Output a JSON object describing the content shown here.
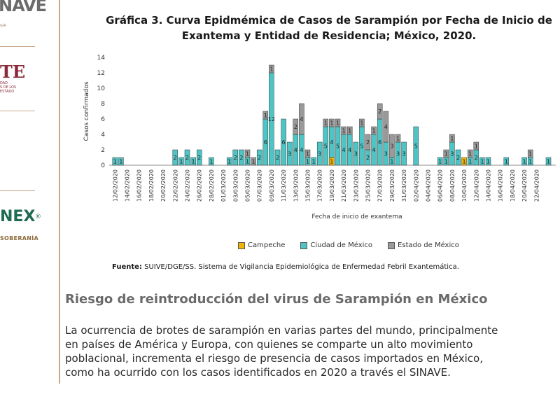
{
  "sidebar": {
    "logo1": "NAVE",
    "logo1_sub": "GÍA",
    "logo2": "TE",
    "logo2_sub": "DAD\nS DE LOS\nESTADO",
    "logo3": "NEX",
    "logo3_reg": "®",
    "logo3_sub": "SOBERANÍA"
  },
  "chart_title_line1": "Gráfica 3. Curva Epidmémica de Casos de Sarampión por Fecha de Inicio de",
  "chart_title_line2": "Exantema y Entidad de Residencia; México, 2020.",
  "colors": {
    "campeche": "#f0b400",
    "cdmx": "#4fc4c4",
    "edomex": "#9a9a9a"
  },
  "chart_data": {
    "type": "bar",
    "stacked": true,
    "ylabel": "Casos confirmados",
    "xlabel": "Fecha de inicio de exantema",
    "ylim": [
      0,
      14
    ],
    "yticks": [
      0,
      2,
      4,
      6,
      8,
      10,
      12,
      14
    ],
    "tick_labels": [
      "12/02/2020",
      "14/02/2020",
      "16/02/2020",
      "18/02/2020",
      "20/02/2020",
      "22/02/2020",
      "24/02/2020",
      "26/02/2020",
      "28/02/2020",
      "01/03/2020",
      "03/03/2020",
      "05/03/2020",
      "07/03/2020",
      "09/03/2020",
      "11/03/2020",
      "13/03/2020",
      "15/03/2020",
      "17/03/2020",
      "19/03/2020",
      "21/03/2020",
      "23/03/2020",
      "25/03/2020",
      "27/03/2020",
      "29/03/2020",
      "31/03/2020",
      "02/04/2020",
      "04/04/2020",
      "06/04/2020",
      "08/04/2020",
      "10/04/2020",
      "12/04/2020",
      "14/04/2020",
      "16/04/2020",
      "18/04/2020",
      "20/04/2020",
      "22/04/2020"
    ],
    "categories": [
      "12/02",
      "13/02",
      "14/02",
      "15/02",
      "16/02",
      "17/02",
      "18/02",
      "19/02",
      "20/02",
      "21/02",
      "22/02",
      "23/02",
      "24/02",
      "25/02",
      "26/02",
      "27/02",
      "28/02",
      "29/02",
      "01/03",
      "02/03",
      "03/03",
      "04/03",
      "05/03",
      "06/03",
      "07/03",
      "08/03",
      "09/03",
      "10/03",
      "11/03",
      "12/03",
      "13/03",
      "14/03",
      "15/03",
      "16/03",
      "17/03",
      "18/03",
      "19/03",
      "20/03",
      "21/03",
      "22/03",
      "23/03",
      "24/03",
      "25/03",
      "26/03",
      "27/03",
      "28/03",
      "29/03",
      "30/03",
      "31/03",
      "01/04",
      "02/04",
      "03/04",
      "04/04",
      "05/04",
      "06/04",
      "07/04",
      "08/04",
      "09/04",
      "10/04",
      "11/04",
      "12/04",
      "13/04",
      "14/04",
      "15/04",
      "16/04",
      "17/04",
      "18/04",
      "19/04",
      "20/04",
      "21/04",
      "22/04",
      "23/04",
      "24/04"
    ],
    "series": [
      {
        "name": "Campeche",
        "values": [
          0,
          0,
          0,
          0,
          0,
          0,
          0,
          0,
          0,
          0,
          0,
          0,
          0,
          0,
          0,
          0,
          0,
          0,
          0,
          0,
          0,
          0,
          0,
          0,
          0,
          0,
          0,
          0,
          0,
          0,
          0,
          0,
          0,
          0,
          0,
          0,
          1,
          0,
          0,
          0,
          0,
          0,
          0,
          0,
          0,
          0,
          0,
          0,
          0,
          0,
          0,
          0,
          0,
          0,
          0,
          0,
          0,
          0,
          1,
          0,
          0,
          0,
          0,
          0,
          0,
          0,
          0,
          0,
          0,
          0,
          0,
          0,
          0
        ]
      },
      {
        "name": "Ciudad de México",
        "values": [
          1,
          1,
          0,
          0,
          0,
          0,
          0,
          0,
          0,
          0,
          2,
          1,
          2,
          1,
          2,
          0,
          1,
          0,
          0,
          1,
          2,
          2,
          1,
          0,
          2,
          6,
          12,
          2,
          6,
          3,
          4,
          4,
          1,
          1,
          3,
          5,
          4,
          5,
          4,
          4,
          3,
          5,
          2,
          4,
          6,
          3,
          1,
          3,
          3,
          0,
          5,
          0,
          0,
          0,
          1,
          1,
          3,
          2,
          0,
          1,
          2,
          1,
          1,
          0,
          0,
          1,
          0,
          0,
          1,
          1,
          0,
          0,
          1
        ]
      },
      {
        "name": "Estado de México",
        "values": [
          0,
          0,
          0,
          0,
          0,
          0,
          0,
          0,
          0,
          0,
          0,
          0,
          0,
          0,
          0,
          0,
          0,
          0,
          0,
          0,
          0,
          0,
          1,
          1,
          0,
          1,
          1,
          0,
          0,
          0,
          2,
          4,
          1,
          0,
          0,
          1,
          1,
          1,
          1,
          1,
          0,
          1,
          2,
          1,
          2,
          4,
          3,
          1,
          0,
          0,
          0,
          0,
          0,
          0,
          0,
          1,
          1,
          0,
          0,
          1,
          1,
          0,
          0,
          0,
          0,
          0,
          0,
          0,
          0,
          1,
          0,
          0,
          0
        ]
      }
    ],
    "data_labels": {
      "campeche": [
        0,
        0,
        0,
        0,
        0,
        0,
        0,
        0,
        0,
        0,
        0,
        0,
        0,
        0,
        0,
        0,
        0,
        0,
        0,
        0,
        0,
        0,
        0,
        0,
        0,
        0,
        0,
        0,
        0,
        0,
        0,
        0,
        0,
        0,
        0,
        0,
        1,
        0,
        0,
        0,
        0,
        0,
        0,
        0,
        0,
        0,
        0,
        0,
        0,
        0,
        0,
        0,
        0,
        0,
        0,
        0,
        0,
        0,
        1,
        0,
        0,
        0,
        0,
        0,
        0,
        0,
        0,
        0,
        0,
        0,
        0,
        0,
        0
      ],
      "cdmx": [
        1,
        1,
        0,
        0,
        0,
        0,
        0,
        0,
        0,
        0,
        2,
        1,
        2,
        1,
        2,
        0,
        1,
        0,
        0,
        1,
        2,
        2,
        1,
        0,
        2,
        6,
        12,
        2,
        6,
        3,
        4,
        4,
        1,
        1,
        3,
        5,
        4,
        5,
        4,
        4,
        3,
        5,
        2,
        4,
        6,
        3,
        1,
        3,
        3,
        0,
        5,
        0,
        0,
        0,
        1,
        1,
        3,
        2,
        0,
        1,
        2,
        1,
        1,
        0,
        0,
        1,
        0,
        0,
        1,
        1,
        0,
        0,
        1
      ],
      "edomex": [
        0,
        0,
        0,
        0,
        0,
        0,
        0,
        0,
        0,
        0,
        0,
        0,
        0,
        0,
        0,
        0,
        0,
        0,
        0,
        0,
        0,
        0,
        1,
        1,
        0,
        1,
        1,
        0,
        0,
        0,
        2,
        4,
        1,
        0,
        0,
        1,
        1,
        1,
        1,
        1,
        0,
        1,
        2,
        1,
        2,
        4,
        3,
        1,
        0,
        0,
        0,
        0,
        0,
        0,
        0,
        1,
        1,
        0,
        0,
        1,
        1,
        0,
        0,
        0,
        0,
        0,
        0,
        0,
        0,
        1,
        0,
        0,
        0
      ]
    },
    "legend_position": "bottom",
    "grid": false
  },
  "legend": {
    "campeche": "Campeche",
    "cdmx": "Ciudad de México",
    "edomex": "Estado de México"
  },
  "source": {
    "label": "Fuente:",
    "text": " SUIVE/DGE/SS. Sistema de Vigilancia Epidemiológica de Enfermedad Febril Exantemática."
  },
  "section_title": "Riesgo de reintroducción del virus de Sarampión en México",
  "body_lines": [
    "La ocurrencia de brotes de sarampión en varias partes del mundo, principalmente",
    "en países de América y Europa, con quienes se comparte un alto movimiento",
    "poblacional, incrementa el riesgo de presencia de casos importados en México,",
    "como ha ocurrido con los casos identificados en 2020 a través el SINAVE."
  ]
}
